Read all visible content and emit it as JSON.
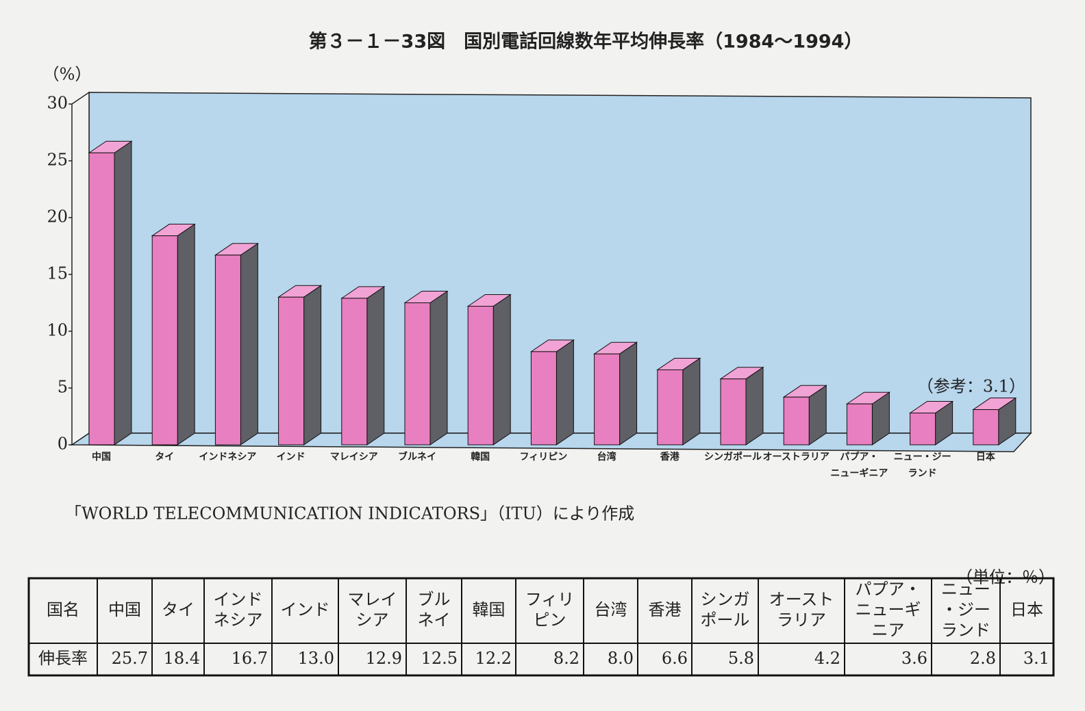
{
  "chart_data": {
    "type": "bar3d",
    "title": "第３－１－33図　国別電話回線数年平均伸長率（1984～1994）",
    "y_label": "（%）",
    "categories": [
      [
        "中国"
      ],
      [
        "タイ"
      ],
      [
        "インドネシア"
      ],
      [
        "インド"
      ],
      [
        "マレイシア"
      ],
      [
        "ブルネイ"
      ],
      [
        "韓国"
      ],
      [
        "フィリピン"
      ],
      [
        "台湾"
      ],
      [
        "香港"
      ],
      [
        "シンガポール"
      ],
      [
        "オーストラリア"
      ],
      [
        "パプア・",
        "ニューギニア"
      ],
      [
        "ニュー・ジー",
        "ランド"
      ],
      [
        "日本"
      ]
    ],
    "values": [
      25.7,
      18.4,
      16.7,
      13.0,
      12.9,
      12.5,
      12.2,
      8.2,
      8.0,
      6.6,
      5.8,
      4.2,
      3.6,
      2.8,
      3.1
    ],
    "color": "#e87fc0",
    "annotation": "（参考：3.1）",
    "ylim": [
      0,
      30
    ],
    "yticks": [
      0,
      5,
      10,
      15,
      20,
      25,
      30
    ]
  },
  "source": "「WORLD TELECOMMUNICATION INDICATORS」（ITU）により作成",
  "table": {
    "unit": "（単位：％）",
    "header": [
      [
        "国名"
      ],
      [
        "中国"
      ],
      [
        "タイ"
      ],
      [
        "インド",
        "ネシア"
      ],
      [
        "インド"
      ],
      [
        "マレイ",
        "シア"
      ],
      [
        "ブル",
        "ネイ"
      ],
      [
        "韓国"
      ],
      [
        "フィリ",
        "ピン"
      ],
      [
        "台湾"
      ],
      [
        "香港"
      ],
      [
        "シンガ",
        "ポール"
      ],
      [
        "オースト",
        "ラリア"
      ],
      [
        "パプア・",
        "ニューギ",
        "ニア"
      ],
      [
        "ニュー",
        "・ジー",
        "ランド"
      ],
      [
        "日本"
      ]
    ],
    "row": [
      "伸長率",
      "25.7",
      "18.4",
      "16.7",
      "13.0",
      "12.9",
      "12.5",
      "12.2",
      "8.2",
      "8.0",
      "6.6",
      "5.8",
      "4.2",
      "3.6",
      "2.8",
      "3.1"
    ]
  }
}
